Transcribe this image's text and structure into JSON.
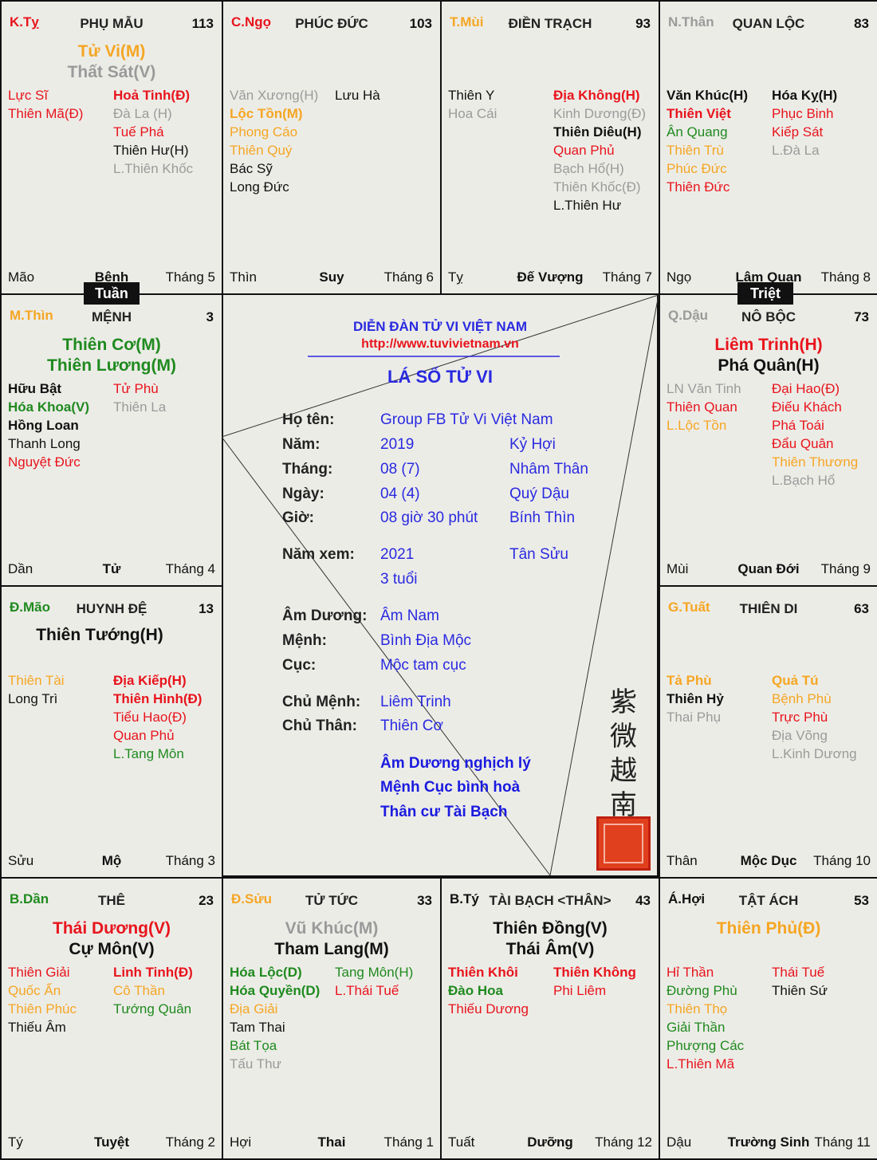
{
  "colors": {
    "red": "#e8141c",
    "orange": "#f5a623",
    "gray": "#9a9a9a",
    "black": "#111111",
    "green": "#1f8a1f",
    "blue": "#2a2ae0"
  },
  "palaces": [
    {
      "stem": "K.Tỵ",
      "stem_color": "red",
      "name": "PHỤ MẪU",
      "age": "113",
      "mains": [
        {
          "t": "Tử Vi(M)",
          "c": "orange"
        },
        {
          "t": "Thất Sát(V)",
          "c": "gray"
        }
      ],
      "left": [
        {
          "t": "Lực Sĩ",
          "c": "red"
        },
        {
          "t": "Thiên Mã(Đ)",
          "c": "red"
        }
      ],
      "right": [
        {
          "t": "Hoả Tinh(Đ)",
          "c": "red",
          "b": 1
        },
        {
          "t": "Đà La (H)",
          "c": "gray"
        },
        {
          "t": "Tuế Phá",
          "c": "red"
        },
        {
          "t": "Thiên Hư(H)",
          "c": "black"
        },
        {
          "t": "L.Thiên Khốc",
          "c": "gray"
        }
      ],
      "branch": "Mão",
      "stage": "Bệnh",
      "month": "Tháng 5"
    },
    {
      "stem": "C.Ngọ",
      "stem_color": "red",
      "name": "PHÚC ĐỨC",
      "age": "103",
      "mains": [],
      "left": [
        {
          "t": "Văn Xương(H)",
          "c": "gray"
        },
        {
          "t": "Lộc Tồn(M)",
          "c": "orange",
          "b": 1
        },
        {
          "t": "Phong Cáo",
          "c": "orange"
        },
        {
          "t": "Thiên Quý",
          "c": "orange"
        },
        {
          "t": "Bác Sỹ",
          "c": "black"
        },
        {
          "t": "Long Đức",
          "c": "black"
        }
      ],
      "right": [
        {
          "t": "Lưu Hà",
          "c": "black"
        }
      ],
      "branch": "Thìn",
      "stage": "Suy",
      "month": "Tháng 6"
    },
    {
      "stem": "T.Mùi",
      "stem_color": "orange",
      "name": "ĐIỀN TRẠCH",
      "age": "93",
      "mains": [],
      "left": [
        {
          "t": "Thiên Y",
          "c": "black"
        },
        {
          "t": "Hoa Cái",
          "c": "gray"
        }
      ],
      "right": [
        {
          "t": "Địa Không(H)",
          "c": "red",
          "b": 1
        },
        {
          "t": "Kinh Dương(Đ)",
          "c": "gray"
        },
        {
          "t": "Thiên Diêu(H)",
          "c": "black",
          "b": 1
        },
        {
          "t": "Quan Phủ",
          "c": "red"
        },
        {
          "t": "Bạch Hổ(H)",
          "c": "gray"
        },
        {
          "t": "Thiên Khốc(Đ)",
          "c": "gray"
        },
        {
          "t": "L.Thiên Hư",
          "c": "black"
        }
      ],
      "branch": "Tỵ",
      "stage": "Đế Vượng",
      "month": "Tháng 7"
    },
    {
      "stem": "N.Thân",
      "stem_color": "gray",
      "name": "QUAN LỘC",
      "age": "83",
      "mains": [],
      "left": [
        {
          "t": "Văn Khúc(H)",
          "c": "black",
          "b": 1
        },
        {
          "t": "Thiên Việt",
          "c": "red",
          "b": 1
        },
        {
          "t": "Ân Quang",
          "c": "green"
        },
        {
          "t": "Thiên Trù",
          "c": "orange"
        },
        {
          "t": "Phúc Đức",
          "c": "orange"
        },
        {
          "t": "Thiên Đức",
          "c": "red"
        }
      ],
      "right": [
        {
          "t": "Hóa Kỵ(H)",
          "c": "black",
          "b": 1
        },
        {
          "t": "Phục Binh",
          "c": "red"
        },
        {
          "t": "Kiếp Sát",
          "c": "red"
        },
        {
          "t": "L.Đà La",
          "c": "gray"
        }
      ],
      "branch": "Ngọ",
      "stage": "Lâm Quan",
      "month": "Tháng 8"
    },
    {
      "stem": "M.Thìn",
      "stem_color": "orange",
      "name": "MỆNH",
      "age": "3",
      "mains": [
        {
          "t": "Thiên Cơ(M)",
          "c": "green"
        },
        {
          "t": "Thiên Lương(M)",
          "c": "green"
        }
      ],
      "left": [
        {
          "t": "Hữu Bật",
          "c": "black",
          "b": 1
        },
        {
          "t": "Hóa Khoa(V)",
          "c": "green",
          "b": 1
        },
        {
          "t": "Hồng Loan",
          "c": "black",
          "b": 1
        },
        {
          "t": "Thanh Long",
          "c": "black"
        },
        {
          "t": "Nguyệt Đức",
          "c": "red"
        }
      ],
      "right": [
        {
          "t": "Tử Phù",
          "c": "red"
        },
        {
          "t": "Thiên La",
          "c": "gray"
        }
      ],
      "branch": "Dần",
      "stage": "Tử",
      "month": "Tháng 4"
    },
    {
      "stem": "Q.Dậu",
      "stem_color": "gray",
      "name": "NÔ BỘC",
      "age": "73",
      "mains": [
        {
          "t": "Liêm Trinh(H)",
          "c": "red"
        },
        {
          "t": "Phá Quân(H)",
          "c": "black"
        }
      ],
      "left": [
        {
          "t": "LN Văn Tinh",
          "c": "gray"
        },
        {
          "t": "Thiên Quan",
          "c": "red"
        },
        {
          "t": "L.Lộc Tồn",
          "c": "orange"
        }
      ],
      "right": [
        {
          "t": "Đại Hao(Đ)",
          "c": "red"
        },
        {
          "t": "Điếu Khách",
          "c": "red"
        },
        {
          "t": "Phá Toái",
          "c": "red"
        },
        {
          "t": "Đẩu Quân",
          "c": "red"
        },
        {
          "t": "Thiên Thương",
          "c": "orange"
        },
        {
          "t": "L.Bạch Hổ",
          "c": "gray"
        }
      ],
      "branch": "Mùi",
      "stage": "Quan Đới",
      "month": "Tháng 9"
    },
    {
      "stem": "Đ.Mão",
      "stem_color": "green",
      "name": "HUYNH ĐỆ",
      "age": "13",
      "mains": [
        {
          "t": "Thiên Tướng(H)",
          "c": "black"
        }
      ],
      "left": [
        {
          "t": "Thiên Tài",
          "c": "orange"
        },
        {
          "t": "Long Trì",
          "c": "black"
        }
      ],
      "right": [
        {
          "t": "Địa Kiếp(H)",
          "c": "red",
          "b": 1
        },
        {
          "t": "Thiên Hình(Đ)",
          "c": "red",
          "b": 1
        },
        {
          "t": "Tiểu Hao(Đ)",
          "c": "red"
        },
        {
          "t": "Quan Phủ",
          "c": "red"
        },
        {
          "t": "L.Tang Môn",
          "c": "green"
        }
      ],
      "branch": "Sửu",
      "stage": "Mộ",
      "month": "Tháng 3"
    },
    {
      "stem": "G.Tuất",
      "stem_color": "orange",
      "name": "THIÊN DI",
      "age": "63",
      "mains": [],
      "left": [
        {
          "t": "Tả Phù",
          "c": "orange",
          "b": 1
        },
        {
          "t": "Thiên Hỷ",
          "c": "black",
          "b": 1
        },
        {
          "t": "Thai Phụ",
          "c": "gray"
        }
      ],
      "right": [
        {
          "t": "Quả Tú",
          "c": "orange",
          "b": 1
        },
        {
          "t": "Bệnh Phù",
          "c": "orange"
        },
        {
          "t": "Trực Phù",
          "c": "red"
        },
        {
          "t": "Địa Võng",
          "c": "gray"
        },
        {
          "t": "L.Kinh Dương",
          "c": "gray"
        }
      ],
      "branch": "Thân",
      "stage": "Mộc Dục",
      "month": "Tháng 10"
    },
    {
      "stem": "B.Dần",
      "stem_color": "green",
      "name": "THÊ",
      "age": "23",
      "mains": [
        {
          "t": "Thái Dương(V)",
          "c": "red"
        },
        {
          "t": "Cự Môn(V)",
          "c": "black"
        }
      ],
      "left": [
        {
          "t": "Thiên Giải",
          "c": "red"
        },
        {
          "t": "Quốc Ấn",
          "c": "orange"
        },
        {
          "t": "Thiên Phúc",
          "c": "orange"
        },
        {
          "t": "Thiếu Âm",
          "c": "black"
        }
      ],
      "right": [
        {
          "t": "Linh Tinh(Đ)",
          "c": "red",
          "b": 1
        },
        {
          "t": "Cô Thần",
          "c": "orange"
        },
        {
          "t": "Tướng Quân",
          "c": "green"
        }
      ],
      "branch": "Tý",
      "stage": "Tuyệt",
      "month": "Tháng 2"
    },
    {
      "stem": "Đ.Sửu",
      "stem_color": "orange",
      "name": "TỬ TỨC",
      "age": "33",
      "mains": [
        {
          "t": "Vũ Khúc(M)",
          "c": "gray"
        },
        {
          "t": "Tham Lang(M)",
          "c": "black"
        }
      ],
      "left": [
        {
          "t": "Hóa Lộc(D)",
          "c": "green",
          "b": 1
        },
        {
          "t": "Hóa Quyền(D)",
          "c": "green",
          "b": 1
        },
        {
          "t": "Địa Giải",
          "c": "orange"
        },
        {
          "t": "Tam Thai",
          "c": "black"
        },
        {
          "t": "Bát Tọa",
          "c": "green"
        },
        {
          "t": "Tấu Thư",
          "c": "gray"
        }
      ],
      "right": [
        {
          "t": "Tang Môn(H)",
          "c": "green"
        },
        {
          "t": "L.Thái Tuế",
          "c": "red"
        }
      ],
      "branch": "Hợi",
      "stage": "Thai",
      "month": "Tháng 1"
    },
    {
      "stem": "B.Tý",
      "stem_color": "black",
      "name": "TÀI BẠCH <THÂN>",
      "age": "43",
      "mains": [
        {
          "t": "Thiên Đồng(V)",
          "c": "black"
        },
        {
          "t": "Thái Âm(V)",
          "c": "black"
        }
      ],
      "left": [
        {
          "t": "Thiên Khôi",
          "c": "red",
          "b": 1
        },
        {
          "t": "Đào Hoa",
          "c": "green",
          "b": 1
        },
        {
          "t": "Thiếu Dương",
          "c": "red"
        }
      ],
      "right": [
        {
          "t": "Thiên Không",
          "c": "red",
          "b": 1
        },
        {
          "t": "Phi Liêm",
          "c": "red"
        }
      ],
      "branch": "Tuất",
      "stage": "Dưỡng",
      "month": "Tháng 12"
    },
    {
      "stem": "Á.Hợi",
      "stem_color": "black",
      "name": "TẬT ÁCH",
      "age": "53",
      "mains": [
        {
          "t": "Thiên Phủ(Đ)",
          "c": "orange"
        }
      ],
      "left": [
        {
          "t": "Hỉ Thần",
          "c": "red"
        },
        {
          "t": "Đường Phù",
          "c": "green"
        },
        {
          "t": "Thiên Thọ",
          "c": "orange"
        },
        {
          "t": "Giải Thần",
          "c": "green"
        },
        {
          "t": "Phượng Các",
          "c": "green"
        },
        {
          "t": "L.Thiên Mã",
          "c": "red"
        }
      ],
      "right": [
        {
          "t": "Thái Tuế",
          "c": "red"
        },
        {
          "t": "Thiên Sứ",
          "c": "black"
        }
      ],
      "branch": "Dậu",
      "stage": "Trường Sinh",
      "month": "Tháng 11"
    }
  ],
  "badges": {
    "tuan": "Tuần",
    "triet": "Triệt"
  },
  "center": {
    "forum": "DIỄN ĐÀN TỬ VI VIỆT NAM",
    "url": "http://www.tuvivietnam.vn",
    "title": "LÁ SỐ TỬ VI",
    "rows": [
      {
        "label": "Họ tên:",
        "value": "Group FB Tử Vi Việt Nam",
        "extra": ""
      },
      {
        "label": "Năm:",
        "value": "2019",
        "extra": "Kỷ Hợi"
      },
      {
        "label": "Tháng:",
        "value": "08 (7)",
        "extra": "Nhâm Thân"
      },
      {
        "label": "Ngày:",
        "value": "04 (4)",
        "extra": "Quý Dậu"
      },
      {
        "label": "Giờ:",
        "value": "08 giờ 30 phút",
        "extra": "Bính Thìn"
      },
      {
        "label": "Năm xem:",
        "value": "2021",
        "extra": "Tân Sửu"
      },
      {
        "label": "",
        "value": "3 tuổi",
        "extra": ""
      },
      {
        "label": "Âm Dương:",
        "value": "Âm Nam",
        "extra": ""
      },
      {
        "label": "Mệnh:",
        "value": "Bình Địa Mộc",
        "extra": ""
      },
      {
        "label": "Cục:",
        "value": "Mộc tam cục",
        "extra": ""
      },
      {
        "label": "Chủ Mệnh:",
        "value": "Liêm Trinh",
        "extra": ""
      },
      {
        "label": "Chủ Thân:",
        "value": "Thiên Cơ",
        "extra": ""
      }
    ],
    "notes": [
      "Âm Dương nghịch lý",
      "Mệnh Cục bình hoà",
      "Thân cư Tài Bạch"
    ],
    "seal_text": "紫微越南"
  }
}
